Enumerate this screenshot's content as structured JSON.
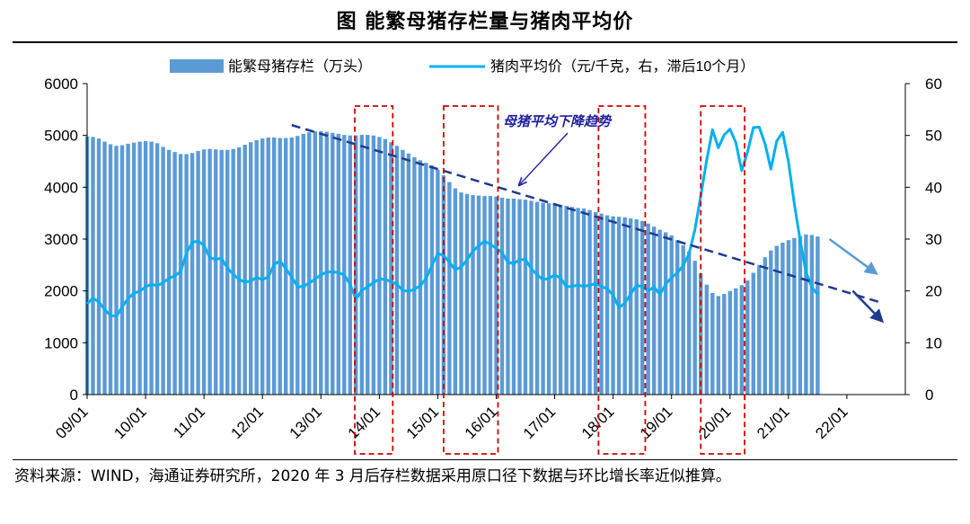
{
  "title": "图  能繁母猪存栏量与猪肉平均价",
  "source": "资料来源：WIND，海通证券研究所，2020 年 3 月后存栏数据采用原口径下数据与环比增长率近似推算。",
  "chart_data": {
    "type": "bar+line",
    "legend_position": "top",
    "series": [
      {
        "name": "能繁母猪存栏（万头）",
        "type": "bar",
        "axis": "left",
        "color": "#5B9BD5",
        "points": [
          [
            2009.0,
            4980
          ],
          [
            2009.1,
            4970
          ],
          [
            2009.2,
            4940
          ],
          [
            2009.3,
            4880
          ],
          [
            2009.4,
            4830
          ],
          [
            2009.5,
            4800
          ],
          [
            2009.6,
            4810
          ],
          [
            2009.7,
            4840
          ],
          [
            2009.8,
            4860
          ],
          [
            2009.9,
            4880
          ],
          [
            2010.0,
            4890
          ],
          [
            2010.1,
            4880
          ],
          [
            2010.2,
            4850
          ],
          [
            2010.3,
            4780
          ],
          [
            2010.4,
            4720
          ],
          [
            2010.5,
            4680
          ],
          [
            2010.6,
            4640
          ],
          [
            2010.7,
            4640
          ],
          [
            2010.8,
            4660
          ],
          [
            2010.9,
            4700
          ],
          [
            2011.0,
            4730
          ],
          [
            2011.1,
            4740
          ],
          [
            2011.2,
            4730
          ],
          [
            2011.3,
            4720
          ],
          [
            2011.4,
            4720
          ],
          [
            2011.5,
            4740
          ],
          [
            2011.6,
            4770
          ],
          [
            2011.7,
            4820
          ],
          [
            2011.8,
            4870
          ],
          [
            2011.9,
            4910
          ],
          [
            2012.0,
            4940
          ],
          [
            2012.1,
            4960
          ],
          [
            2012.2,
            4960
          ],
          [
            2012.3,
            4950
          ],
          [
            2012.4,
            4950
          ],
          [
            2012.5,
            4960
          ],
          [
            2012.6,
            4990
          ],
          [
            2012.7,
            5030
          ],
          [
            2012.8,
            5060
          ],
          [
            2012.9,
            5080
          ],
          [
            2013.0,
            5080
          ],
          [
            2013.1,
            5070
          ],
          [
            2013.2,
            5050
          ],
          [
            2013.3,
            5030
          ],
          [
            2013.4,
            5010
          ],
          [
            2013.5,
            5000
          ],
          [
            2013.6,
            5000
          ],
          [
            2013.7,
            5010
          ],
          [
            2013.8,
            5010
          ],
          [
            2013.9,
            5000
          ],
          [
            2014.0,
            4970
          ],
          [
            2014.1,
            4930
          ],
          [
            2014.2,
            4870
          ],
          [
            2014.3,
            4800
          ],
          [
            2014.4,
            4720
          ],
          [
            2014.5,
            4650
          ],
          [
            2014.6,
            4580
          ],
          [
            2014.7,
            4520
          ],
          [
            2014.8,
            4470
          ],
          [
            2014.9,
            4420
          ],
          [
            2015.0,
            4340
          ],
          [
            2015.1,
            4230
          ],
          [
            2015.2,
            4100
          ],
          [
            2015.3,
            3980
          ],
          [
            2015.4,
            3900
          ],
          [
            2015.5,
            3870
          ],
          [
            2015.6,
            3850
          ],
          [
            2015.7,
            3840
          ],
          [
            2015.8,
            3830
          ],
          [
            2015.9,
            3830
          ],
          [
            2016.0,
            3820
          ],
          [
            2016.1,
            3800
          ],
          [
            2016.2,
            3780
          ],
          [
            2016.3,
            3780
          ],
          [
            2016.4,
            3770
          ],
          [
            2016.5,
            3760
          ],
          [
            2016.6,
            3740
          ],
          [
            2016.7,
            3720
          ],
          [
            2016.8,
            3700
          ],
          [
            2016.9,
            3690
          ],
          [
            2017.0,
            3680
          ],
          [
            2017.1,
            3660
          ],
          [
            2017.2,
            3640
          ],
          [
            2017.3,
            3620
          ],
          [
            2017.4,
            3600
          ],
          [
            2017.5,
            3590
          ],
          [
            2017.6,
            3560
          ],
          [
            2017.7,
            3520
          ],
          [
            2017.8,
            3490
          ],
          [
            2017.9,
            3460
          ],
          [
            2018.0,
            3440
          ],
          [
            2018.1,
            3430
          ],
          [
            2018.2,
            3420
          ],
          [
            2018.3,
            3400
          ],
          [
            2018.4,
            3380
          ],
          [
            2018.5,
            3350
          ],
          [
            2018.6,
            3300
          ],
          [
            2018.7,
            3240
          ],
          [
            2018.8,
            3180
          ],
          [
            2018.9,
            3130
          ],
          [
            2019.0,
            3070
          ],
          [
            2019.1,
            2980
          ],
          [
            2019.2,
            2880
          ],
          [
            2019.3,
            2760
          ],
          [
            2019.4,
            2580
          ],
          [
            2019.5,
            2340
          ],
          [
            2019.6,
            2120
          ],
          [
            2019.7,
            1960
          ],
          [
            2019.8,
            1900
          ],
          [
            2019.9,
            1940
          ],
          [
            2020.0,
            2000
          ],
          [
            2020.1,
            2050
          ],
          [
            2020.2,
            2110
          ],
          [
            2020.3,
            2200
          ],
          [
            2020.4,
            2350
          ],
          [
            2020.5,
            2500
          ],
          [
            2020.6,
            2650
          ],
          [
            2020.7,
            2780
          ],
          [
            2020.8,
            2870
          ],
          [
            2020.9,
            2930
          ],
          [
            2021.0,
            2980
          ],
          [
            2021.1,
            3020
          ],
          [
            2021.2,
            3060
          ],
          [
            2021.3,
            3090
          ],
          [
            2021.4,
            3080
          ],
          [
            2021.5,
            3050
          ]
        ]
      },
      {
        "name": "猪肉平均价（元/千克，右，滞后10个月）",
        "type": "line",
        "axis": "right",
        "color": "#00B0F0",
        "points": [
          [
            2009.0,
            17.5
          ],
          [
            2009.1,
            18.6
          ],
          [
            2009.2,
            17.9
          ],
          [
            2009.3,
            16.4
          ],
          [
            2009.4,
            15.3
          ],
          [
            2009.5,
            15.1
          ],
          [
            2009.6,
            16.9
          ],
          [
            2009.7,
            18.5
          ],
          [
            2009.8,
            19.6
          ],
          [
            2009.9,
            19.9
          ],
          [
            2010.0,
            20.8
          ],
          [
            2010.1,
            21.3
          ],
          [
            2010.2,
            21.0
          ],
          [
            2010.3,
            21.6
          ],
          [
            2010.4,
            22.4
          ],
          [
            2010.5,
            22.9
          ],
          [
            2010.6,
            23.7
          ],
          [
            2010.7,
            27.3
          ],
          [
            2010.8,
            29.4
          ],
          [
            2010.9,
            29.6
          ],
          [
            2011.0,
            28.8
          ],
          [
            2011.1,
            26.4
          ],
          [
            2011.2,
            26.1
          ],
          [
            2011.3,
            26.3
          ],
          [
            2011.4,
            24.4
          ],
          [
            2011.5,
            23.2
          ],
          [
            2011.6,
            22.2
          ],
          [
            2011.7,
            21.7
          ],
          [
            2011.8,
            21.9
          ],
          [
            2011.9,
            22.6
          ],
          [
            2012.0,
            22.2
          ],
          [
            2012.1,
            22.7
          ],
          [
            2012.2,
            25.1
          ],
          [
            2012.3,
            25.8
          ],
          [
            2012.4,
            24.3
          ],
          [
            2012.5,
            22.7
          ],
          [
            2012.6,
            20.8
          ],
          [
            2012.7,
            20.9
          ],
          [
            2012.8,
            21.5
          ],
          [
            2012.9,
            22.3
          ],
          [
            2013.0,
            23.1
          ],
          [
            2013.1,
            23.6
          ],
          [
            2013.2,
            23.7
          ],
          [
            2013.3,
            23.5
          ],
          [
            2013.4,
            23.1
          ],
          [
            2013.5,
            21.3
          ],
          [
            2013.6,
            18.4
          ],
          [
            2013.7,
            20.1
          ],
          [
            2013.8,
            20.8
          ],
          [
            2013.9,
            21.6
          ],
          [
            2014.0,
            22.3
          ],
          [
            2014.1,
            22.2
          ],
          [
            2014.2,
            21.8
          ],
          [
            2014.3,
            21.3
          ],
          [
            2014.4,
            20.1
          ],
          [
            2014.5,
            19.9
          ],
          [
            2014.6,
            20.3
          ],
          [
            2014.7,
            21.0
          ],
          [
            2014.8,
            22.4
          ],
          [
            2014.9,
            24.9
          ],
          [
            2015.0,
            27.2
          ],
          [
            2015.1,
            26.9
          ],
          [
            2015.2,
            25.5
          ],
          [
            2015.3,
            24.1
          ],
          [
            2015.4,
            24.6
          ],
          [
            2015.5,
            26.0
          ],
          [
            2015.6,
            27.7
          ],
          [
            2015.7,
            28.7
          ],
          [
            2015.8,
            29.6
          ],
          [
            2015.9,
            29.0
          ],
          [
            2016.0,
            28.2
          ],
          [
            2016.1,
            27.4
          ],
          [
            2016.2,
            25.5
          ],
          [
            2016.3,
            25.3
          ],
          [
            2016.4,
            26.0
          ],
          [
            2016.5,
            26.1
          ],
          [
            2016.6,
            24.3
          ],
          [
            2016.7,
            23.1
          ],
          [
            2016.8,
            22.2
          ],
          [
            2016.9,
            22.4
          ],
          [
            2017.0,
            23.1
          ],
          [
            2017.1,
            22.5
          ],
          [
            2017.2,
            20.8
          ],
          [
            2017.3,
            20.9
          ],
          [
            2017.4,
            21.1
          ],
          [
            2017.5,
            20.9
          ],
          [
            2017.6,
            21.1
          ],
          [
            2017.7,
            21.4
          ],
          [
            2017.8,
            20.9
          ],
          [
            2017.9,
            20.4
          ],
          [
            2018.0,
            19.2
          ],
          [
            2018.1,
            16.8
          ],
          [
            2018.2,
            17.6
          ],
          [
            2018.3,
            19.4
          ],
          [
            2018.4,
            21.1
          ],
          [
            2018.5,
            20.8
          ],
          [
            2018.6,
            20.0
          ],
          [
            2018.7,
            20.8
          ],
          [
            2018.8,
            19.3
          ],
          [
            2018.9,
            21.3
          ],
          [
            2019.0,
            22.6
          ],
          [
            2019.1,
            23.5
          ],
          [
            2019.2,
            24.9
          ],
          [
            2019.3,
            27.2
          ],
          [
            2019.4,
            31.8
          ],
          [
            2019.5,
            38.4
          ],
          [
            2019.6,
            45.2
          ],
          [
            2019.7,
            51.1
          ],
          [
            2019.8,
            47.6
          ],
          [
            2019.9,
            50.1
          ],
          [
            2020.0,
            51.2
          ],
          [
            2020.1,
            48.6
          ],
          [
            2020.2,
            43.2
          ],
          [
            2020.3,
            46.8
          ],
          [
            2020.4,
            51.5
          ],
          [
            2020.5,
            51.6
          ],
          [
            2020.6,
            48.4
          ],
          [
            2020.7,
            43.5
          ],
          [
            2020.8,
            48.9
          ],
          [
            2020.9,
            50.6
          ],
          [
            2021.0,
            44.9
          ],
          [
            2021.1,
            36.8
          ],
          [
            2021.2,
            29.8
          ],
          [
            2021.3,
            23.6
          ],
          [
            2021.4,
            20.7
          ],
          [
            2021.5,
            19.3
          ]
        ]
      }
    ],
    "y_left": {
      "ylim": [
        0,
        6000
      ],
      "ticks": [
        "0",
        "1000",
        "2000",
        "3000",
        "4000",
        "5000",
        "6000"
      ]
    },
    "y_right": {
      "ylim": [
        0,
        60
      ],
      "ticks": [
        "0",
        "10",
        "20",
        "30",
        "40",
        "50",
        "60"
      ]
    },
    "x": {
      "range": [
        2009,
        2023
      ],
      "ticks": [
        "09/01",
        "10/01",
        "11/01",
        "12/01",
        "13/01",
        "14/01",
        "15/01",
        "16/01",
        "17/01",
        "18/01",
        "19/01",
        "20/01",
        "21/01",
        "22/01"
      ]
    },
    "trend_line": {
      "color": "#1F3A8F",
      "from": [
        2012.5,
        5200
      ],
      "to": [
        2022.6,
        1770
      ]
    },
    "annotation": {
      "text": "母猪平均下降趋势",
      "color": "#1F1F9F",
      "points_to": [
        2016.4,
        4050
      ]
    },
    "highlight_boxes": [
      {
        "color": "#D00000",
        "x_range": [
          2013.58,
          2014.23
        ],
        "y_range": [
          7300,
          12500
        ]
      },
      {
        "color": "#D00000",
        "x_range": [
          2015.1,
          2016.03
        ],
        "y_range": [
          7300,
          12300
        ]
      },
      {
        "color": "#D00000",
        "x_range": [
          2017.75,
          2018.55
        ],
        "y_range": [
          7300,
          12500
        ]
      },
      {
        "color": "#D00000",
        "x_range": [
          2019.5,
          2020.25
        ],
        "y_range": [
          7300,
          12600
        ]
      }
    ],
    "projection_arrows": [
      {
        "color": "#5B9BD5",
        "from": [
          2021.7,
          3000
        ],
        "to": [
          2022.5,
          2340
        ]
      },
      {
        "color": "#1F3A8F",
        "from": [
          2022.1,
          2000
        ],
        "to": [
          2022.6,
          1420
        ]
      }
    ]
  }
}
